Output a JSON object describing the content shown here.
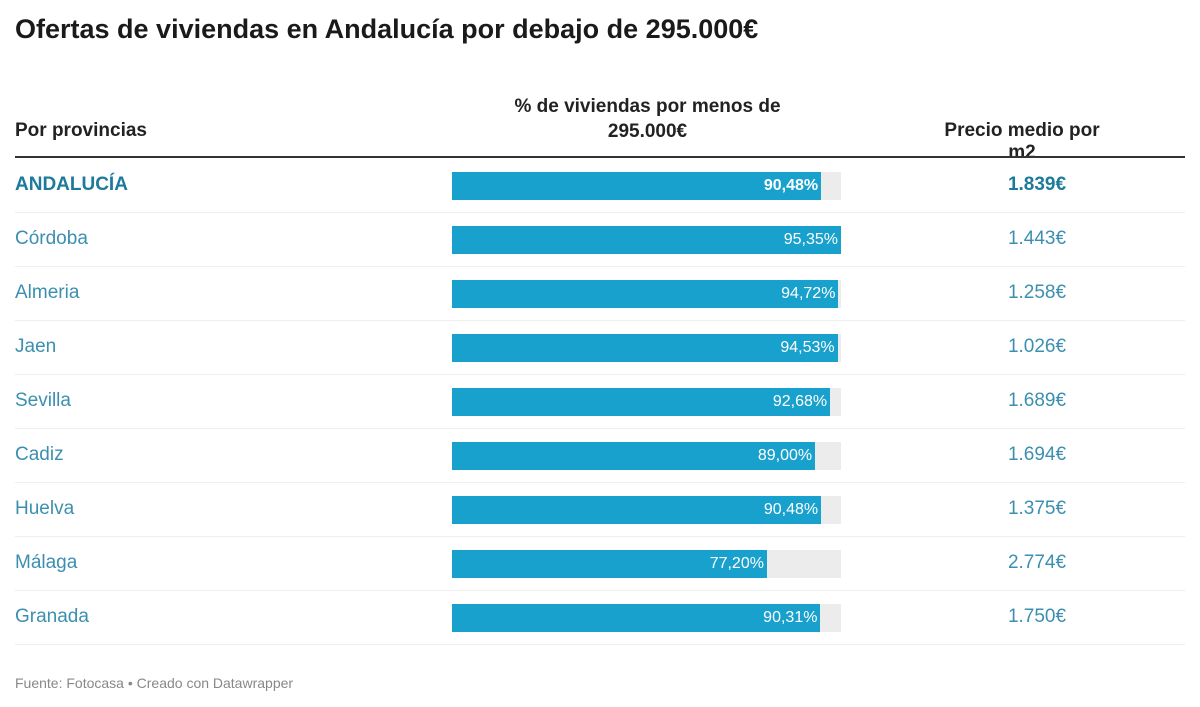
{
  "title": "Ofertas de viviendas en Andalucía por debajo de 295.000€",
  "headers": {
    "col1": "Por provincias",
    "col2": "% de viviendas por menos de 295.000€",
    "col3": "Precio medio por m2"
  },
  "footer": "Fuente: Fotocasa • Creado con Datawrapper",
  "colors": {
    "bar": "#18a1cd",
    "track": "#ececec",
    "text": "#3c8fb0"
  },
  "chart_data": {
    "type": "table",
    "bar_max": 95.35,
    "rows": [
      {
        "name": "ANDALUCÍA",
        "pct": 90.48,
        "pct_label": "90,48%",
        "price": "1.839€",
        "bold": true
      },
      {
        "name": "Córdoba",
        "pct": 95.35,
        "pct_label": "95,35%",
        "price": "1.443€"
      },
      {
        "name": "Almeria",
        "pct": 94.72,
        "pct_label": "94,72%",
        "price": "1.258€"
      },
      {
        "name": "Jaen",
        "pct": 94.53,
        "pct_label": "94,53%",
        "price": "1.026€"
      },
      {
        "name": "Sevilla",
        "pct": 92.68,
        "pct_label": "92,68%",
        "price": "1.689€"
      },
      {
        "name": "Cadiz",
        "pct": 89.0,
        "pct_label": "89,00%",
        "price": "1.694€"
      },
      {
        "name": "Huelva",
        "pct": 90.48,
        "pct_label": "90,48%",
        "price": "1.375€"
      },
      {
        "name": "Málaga",
        "pct": 77.2,
        "pct_label": "77,20%",
        "price": "2.774€"
      },
      {
        "name": "Granada",
        "pct": 90.31,
        "pct_label": "90,31%",
        "price": "1.750€"
      }
    ]
  }
}
